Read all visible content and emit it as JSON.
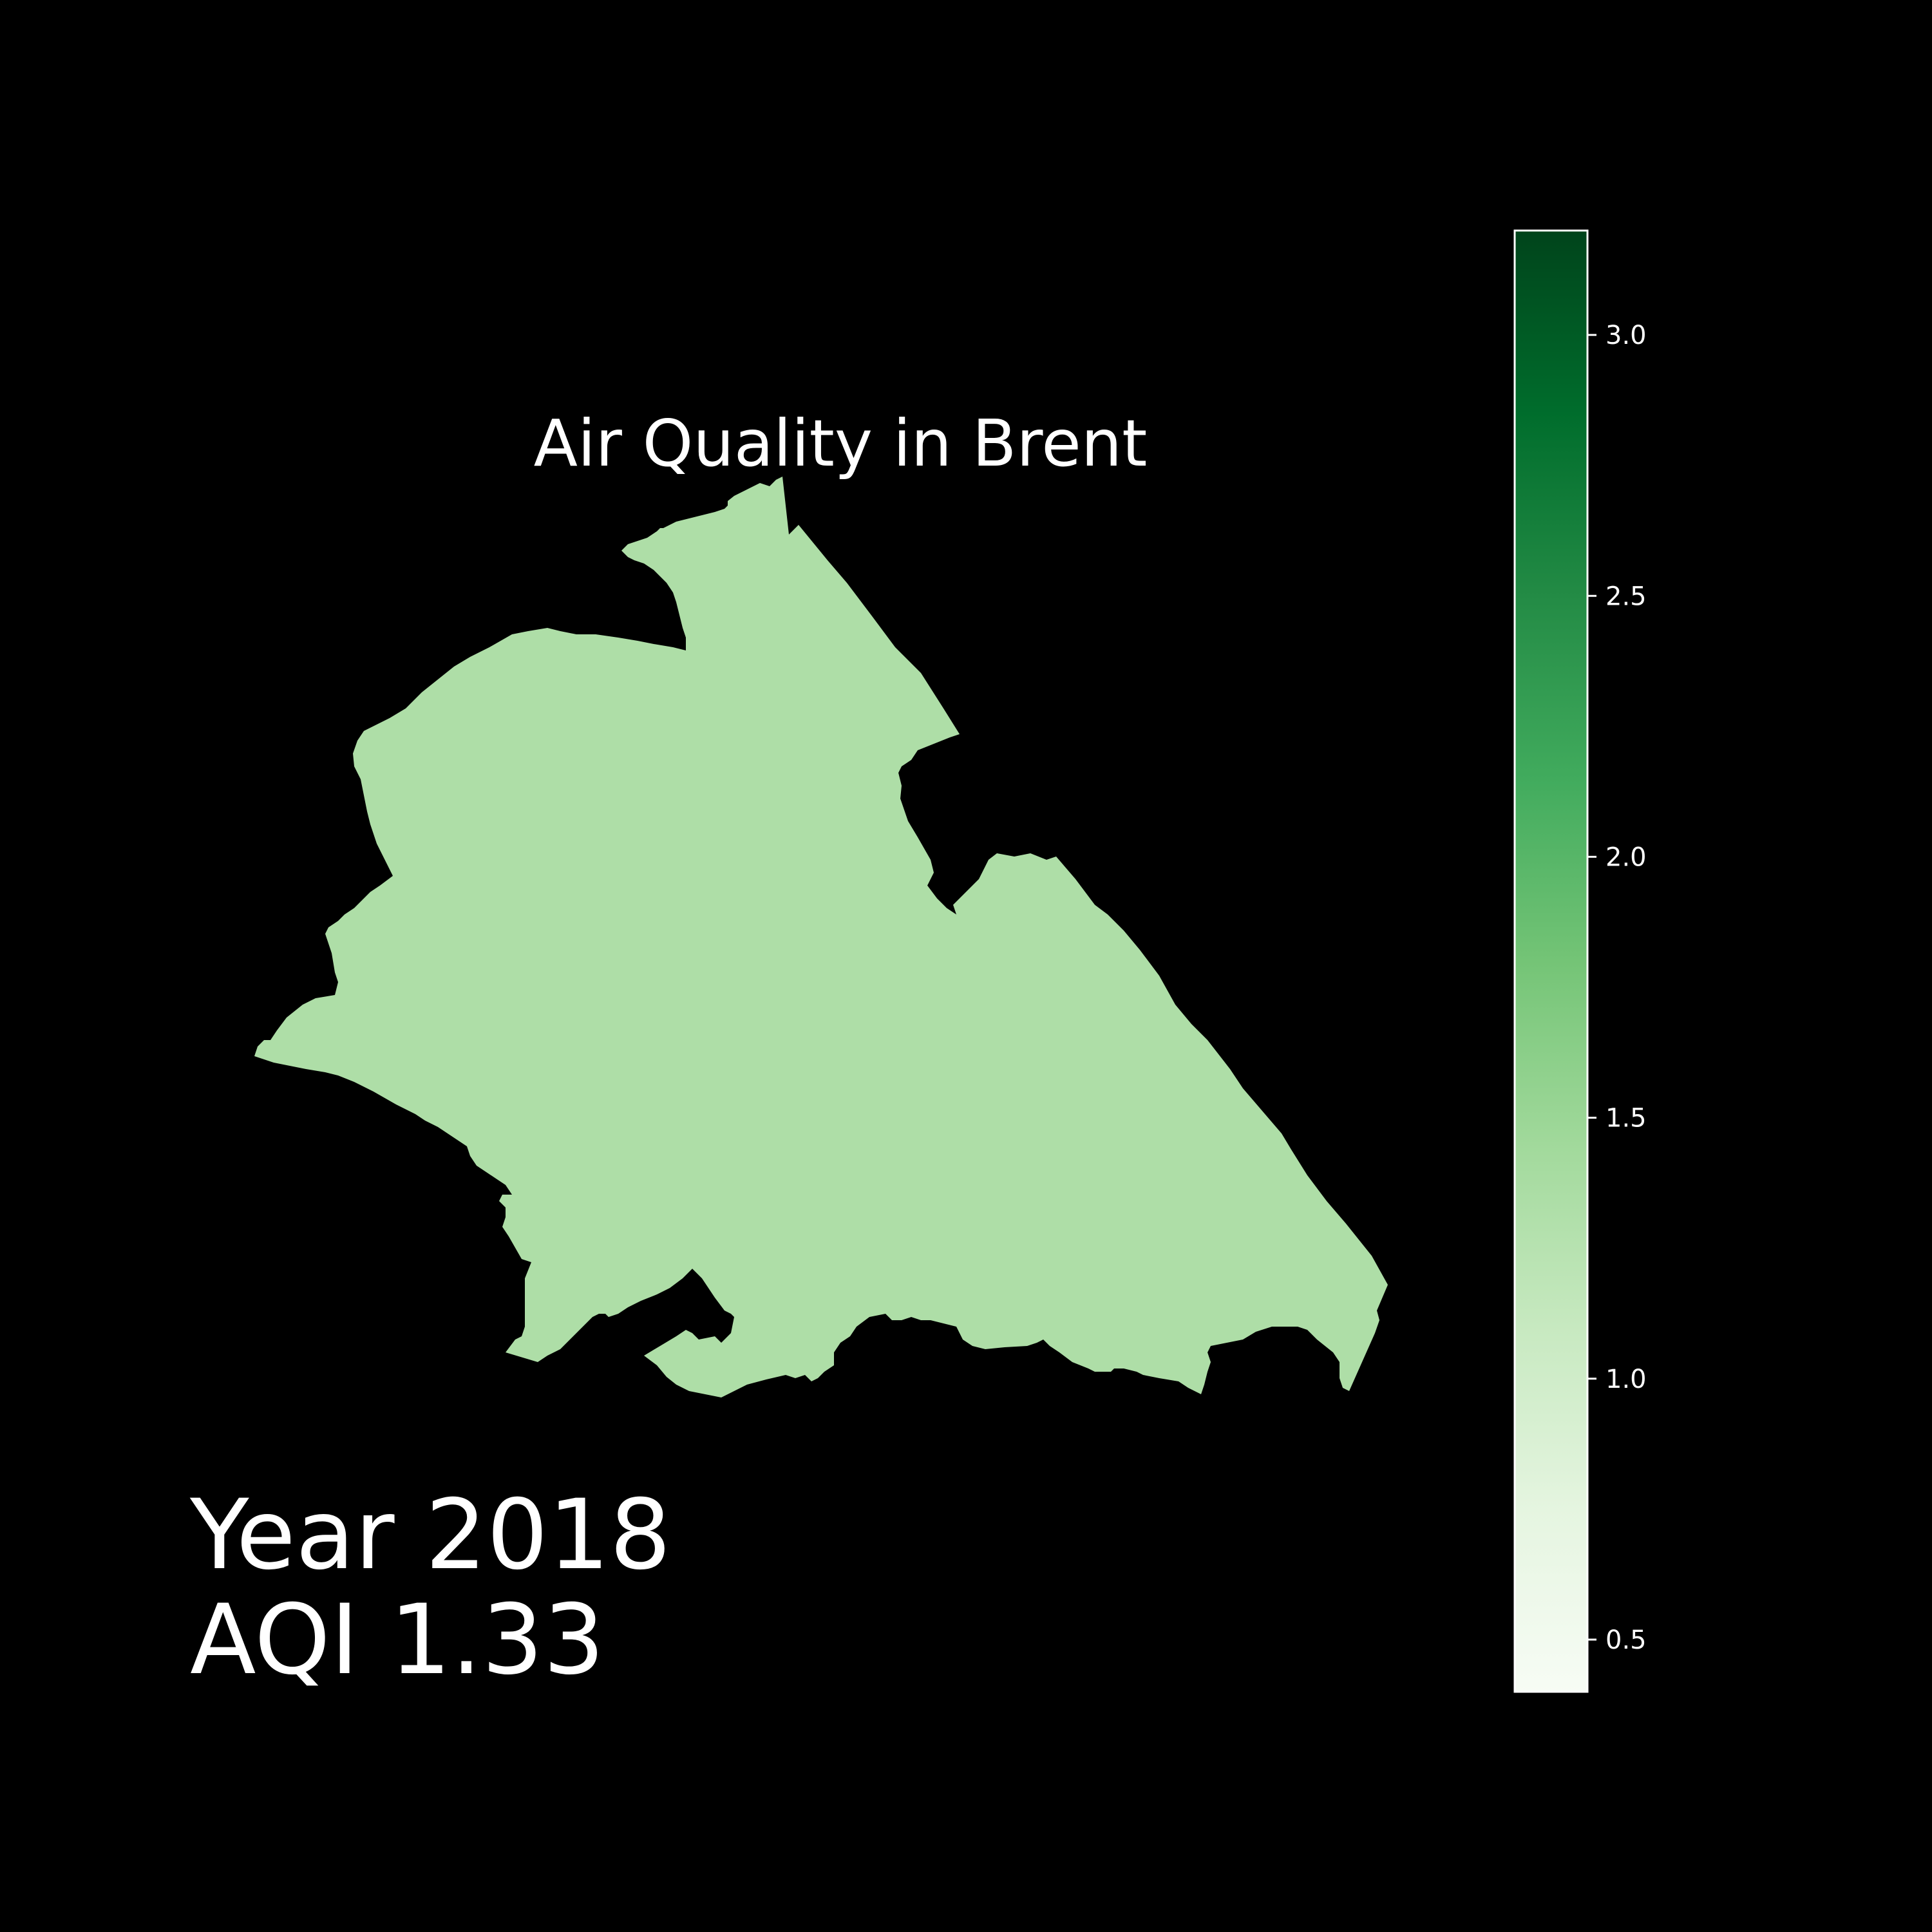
{
  "map": {
    "title": "Air Quality in Brent",
    "region": "Brent",
    "fill_color": "#aedea7",
    "background_color": "#000000"
  },
  "info": {
    "year_label": "Year 2018",
    "aqi_label": "AQI 1.33",
    "aqi_value": 1.33
  },
  "colorbar": {
    "colormap": "Greens",
    "range": [
      0.4,
      3.2
    ],
    "ticks": [
      {
        "value": 0.5,
        "label": "0.5"
      },
      {
        "value": 1.0,
        "label": "1.0"
      },
      {
        "value": 1.5,
        "label": "1.5"
      },
      {
        "value": 2.0,
        "label": "2.0"
      },
      {
        "value": 2.5,
        "label": "2.5"
      },
      {
        "value": 3.0,
        "label": "3.0"
      }
    ],
    "colors": [
      "#f7fcf5",
      "#e5f5e0",
      "#c7e9c0",
      "#a1d99b",
      "#74c476",
      "#41ab5d",
      "#238b45",
      "#006d2c",
      "#00441b"
    ]
  }
}
